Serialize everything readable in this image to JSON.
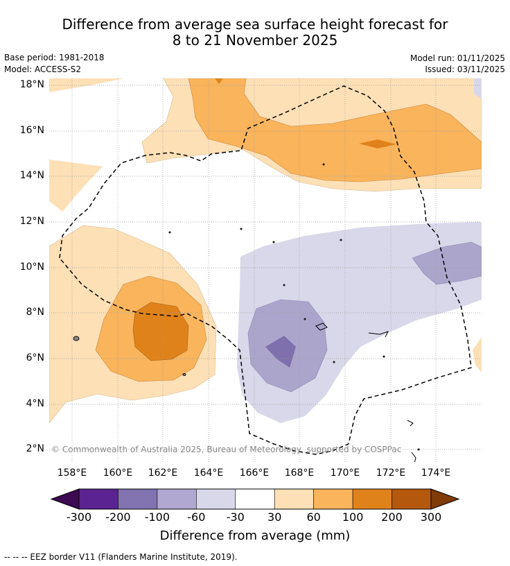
{
  "header": {
    "title_line1": "Difference from average sea surface height forecast for",
    "title_line2": "8 to 21 November 2025",
    "base_period": "Base period: 1981-2018",
    "model": "Model: ACCESS-S2",
    "model_run": "Model run: 01/11/2025",
    "issued": "Issued: 03/11/2025"
  },
  "map": {
    "copyright": "© Commonwealth of Australia 2025, Bureau of Meteorology, supported by COSPPac",
    "lat_labels": [
      "18°N",
      "16°N",
      "14°N",
      "12°N",
      "10°N",
      "8°N",
      "6°N",
      "4°N",
      "2°N"
    ],
    "lon_labels": [
      "158°E",
      "160°E",
      "162°E",
      "164°E",
      "166°E",
      "168°E",
      "170°E",
      "172°E",
      "174°E"
    ],
    "colors": {
      "pos_30_60": "#fde0b6",
      "pos_60_100": "#f9b45c",
      "pos_100_200": "#e0821a",
      "neg_30_60": "#d8d8ea",
      "neg_60_100": "#aba5cc",
      "neg_100_200": "#7e70ad"
    }
  },
  "colorbar": {
    "ticks": [
      "-300",
      "-200",
      "-100",
      "-60",
      "-30",
      "30",
      "60",
      "100",
      "200",
      "300"
    ],
    "colors": [
      "#3b0a52",
      "#5a2391",
      "#8273b1",
      "#b0a8d1",
      "#d8d8ea",
      "#ffffff",
      "#fde0b6",
      "#f9b45c",
      "#e0821a",
      "#b3580c",
      "#7f3b08"
    ],
    "title": "Difference from average (mm)"
  },
  "footnote": "--  --  -- EEZ border V11 (Flanders Marine Institute, 2019)."
}
